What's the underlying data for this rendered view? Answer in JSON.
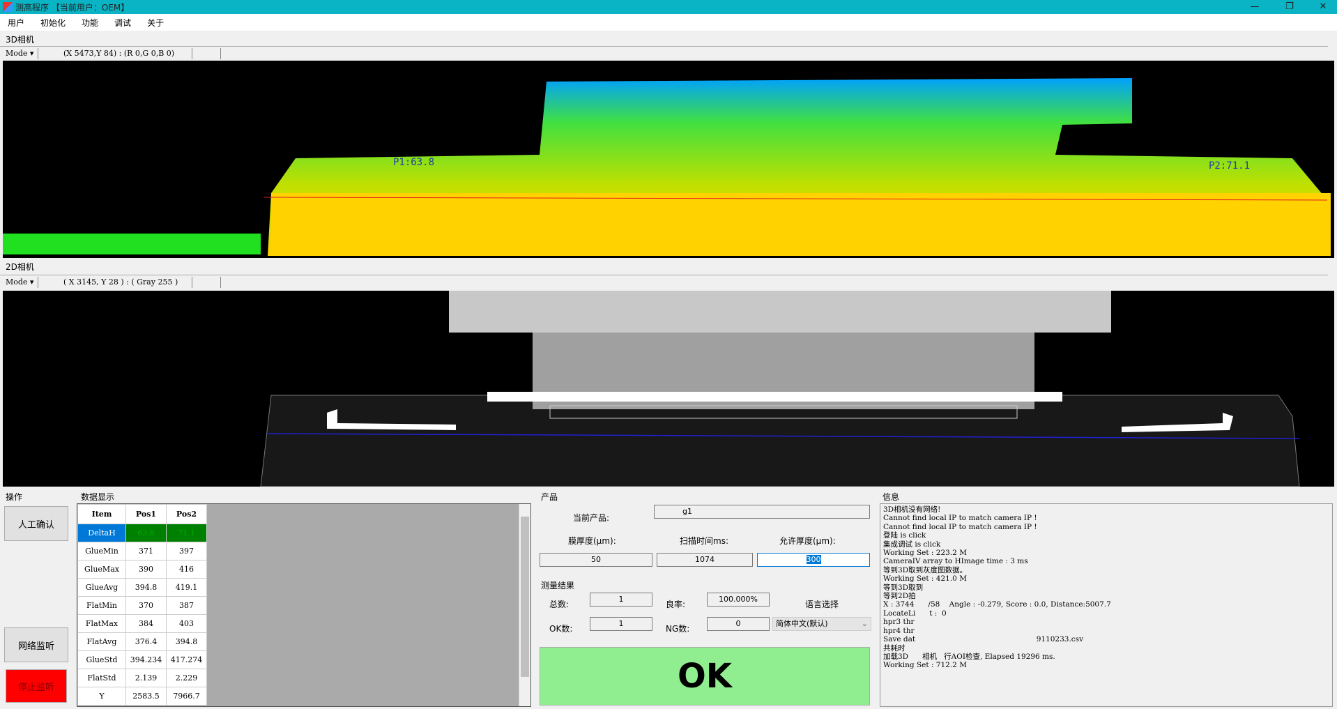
{
  "window": {
    "title": "测高程序 【当前用户：OEM】",
    "minimize": "—",
    "restore": "❐",
    "close": "✕"
  },
  "menu": [
    "用户",
    "初始化",
    "功能",
    "调试",
    "关于"
  ],
  "cam3d": {
    "label": "3D相机",
    "mode": "Mode ▾",
    "coord": "(X 5473,Y 84) : (R 0,G 0,B 0)",
    "p1": "P1:63.8",
    "p2": "P2:71.1"
  },
  "cam2d": {
    "label": "2D相机",
    "mode": "Mode ▾",
    "coord": "( X 3145, Y 28 ) : ( Gray 255 )"
  },
  "ops": {
    "title": "操作",
    "confirm": "人工确认",
    "listen": "网络监听",
    "stop": "停止监听"
  },
  "datadisplay": {
    "title": "数据显示",
    "headers": [
      "Item",
      "Pos1",
      "Pos2"
    ],
    "rows": [
      [
        "DeltaH",
        "63.8",
        "71.1"
      ],
      [
        "GlueMin",
        "371",
        "397"
      ],
      [
        "GlueMax",
        "390",
        "416"
      ],
      [
        "GlueAvg",
        "394.8",
        "419.1"
      ],
      [
        "FlatMin",
        "370",
        "387"
      ],
      [
        "FlatMax",
        "384",
        "403"
      ],
      [
        "FlatAvg",
        "376.4",
        "394.8"
      ],
      [
        "GlueStd",
        "394.234",
        "417.274"
      ],
      [
        "FlatStd",
        "2.139",
        "2.229"
      ],
      [
        "Y",
        "2583.5",
        "7966.7"
      ]
    ]
  },
  "product": {
    "title": "产品",
    "current_label": "当前产品:",
    "current_value": "g1",
    "film_label": "膜厚度(μm):",
    "scan_label": "扫描时间ms:",
    "allow_label": "允许厚度(μm):",
    "film_value": "50",
    "scan_value": "1074",
    "allow_value": "300"
  },
  "results": {
    "title": "测量结果",
    "total_label": "总数:",
    "total": "1",
    "yield_label": "良率:",
    "yield": "100.000%",
    "lang_label": "语言选择",
    "ok_label": "OK数:",
    "ok": "1",
    "ng_label": "NG数:",
    "ng": "0",
    "lang_value": "简体中文(默认)",
    "verdict": "OK"
  },
  "info": {
    "title": "信息",
    "log": [
      "3D相机没有网络!",
      "Cannot find local IP to match camera IP !",
      "Cannot find local IP to match camera IP !",
      "登陆 is click",
      "集成调试 is click",
      "Working Set : 223.2 M",
      "CameraIV array to HImage time : 3 ms",
      "等到3D取到灰度图数据。",
      "Working Set : 421.0 M",
      "等到3D取到",
      "等到2D拍",
      "X : 3744      /58    Angle : -0.279, Score : 0.0, Distance:5007.7",
      "LocateLi      t :  0",
      "hpr3 thr",
      "hpr4 thr",
      "Save dat                                                    9110233.csv",
      "共耗时",
      "加载3D      相机   行AOI检查, Elapsed 19296 ms.",
      "Working Set : 712.2 M"
    ]
  },
  "colors": {
    "titlebar": "#0ab4c4",
    "deltah_cell": "#008000",
    "selected": "#0078d7",
    "stop_button": "#ff0000",
    "ok_box": "#90ee90"
  }
}
